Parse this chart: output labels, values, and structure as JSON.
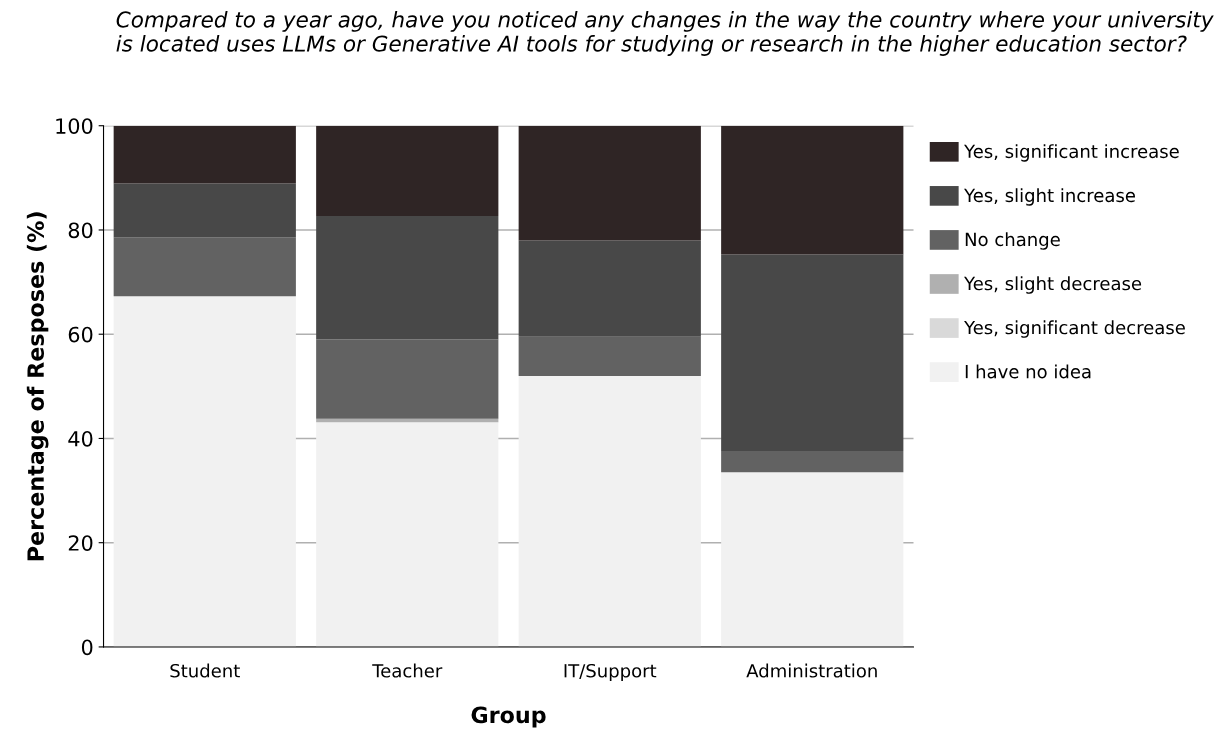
{
  "chart_data": {
    "type": "bar",
    "stacked": true,
    "title": "Compared to a year ago, have you noticed any changes in the way the country where your university is located uses LLMs or Generative AI tools for studying or research in the higher education sector?",
    "xlabel": "Group",
    "ylabel": "Percentage of Resposes (%)",
    "categories": [
      "Student",
      "Teacher",
      "IT/Support",
      "Administration"
    ],
    "series": [
      {
        "name": "I have no idea",
        "color": "#f1f1f1",
        "values": [
          67.3,
          43.1,
          52.0,
          33.5
        ]
      },
      {
        "name": "Yes, significant decrease",
        "color": "#d9d9d9",
        "values": [
          0,
          0,
          0,
          0
        ]
      },
      {
        "name": "Yes, slight decrease",
        "color": "#b0b0b0",
        "values": [
          0,
          0.7,
          0,
          0
        ]
      },
      {
        "name": "No change",
        "color": "#626262",
        "values": [
          11.3,
          15.2,
          7.5,
          4.1
        ]
      },
      {
        "name": "Yes, slight increase",
        "color": "#484848",
        "values": [
          10.3,
          23.7,
          18.5,
          37.7
        ]
      },
      {
        "name": "Yes, significant increase",
        "color": "#2f2525",
        "values": [
          11.1,
          17.3,
          22.0,
          24.7
        ]
      }
    ],
    "ylim": [
      0,
      100
    ],
    "yticks": [
      0,
      20,
      40,
      60,
      80,
      100
    ],
    "grid": "y",
    "legend": "top right"
  }
}
